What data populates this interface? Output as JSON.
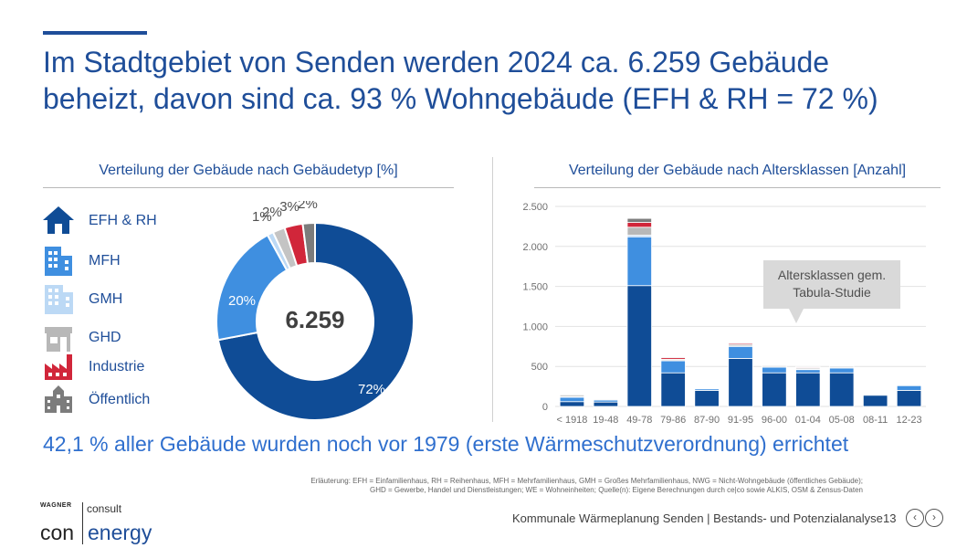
{
  "headline": {
    "line1": "Im Stadtgebiet von Senden werden 2024 ca. 6.259 Gebäude",
    "line2": "beheizt, davon sind ca. 93 % Wohngebäude (EFH & RH = 72 %)"
  },
  "left_panel": {
    "title": "Verteilung der Gebäude nach Gebäudetyp [%]"
  },
  "right_panel": {
    "title": "Verteilung der Gebäude nach Altersklassen [Anzahl]"
  },
  "legend": [
    {
      "label": "EFH & RH",
      "icon": "house-icon",
      "color": "#0f4c96"
    },
    {
      "label": "MFH",
      "icon": "apartment-building-icon",
      "color": "#3f8fe0"
    },
    {
      "label": "GMH",
      "icon": "large-apartment-icon",
      "color": "#bcd9f5"
    },
    {
      "label": "GHD",
      "icon": "shop-icon",
      "color": "#b8b8b8"
    },
    {
      "label": "Industrie",
      "icon": "factory-icon",
      "color": "#d1263a"
    },
    {
      "label": "Öffentlich",
      "icon": "public-building-icon",
      "color": "#7c7c7c"
    }
  ],
  "chart_data": [
    {
      "type": "pie",
      "title": "Verteilung der Gebäude nach Gebäudetyp [%]",
      "center_label": "6.259",
      "slices": [
        {
          "name": "EFH & RH",
          "value": 72,
          "label": "72%",
          "color": "#0f4c96"
        },
        {
          "name": "MFH",
          "value": 20,
          "label": "20%",
          "color": "#3f8fe0"
        },
        {
          "name": "GMH",
          "value": 1,
          "label": "1%",
          "color": "#bcd9f5"
        },
        {
          "name": "GHD",
          "value": 2,
          "label": "2%",
          "color": "#c4c4c4"
        },
        {
          "name": "Industrie",
          "value": 3,
          "label": "3%",
          "color": "#d1263a"
        },
        {
          "name": "Öffentlich",
          "value": 2,
          "label": "2%",
          "color": "#7c7c7c"
        }
      ]
    },
    {
      "type": "bar",
      "stacked": true,
      "title": "Verteilung der Gebäude nach Altersklassen [Anzahl]",
      "categories": [
        "< 1918",
        "19-48",
        "49-78",
        "79-86",
        "87-90",
        "91-95",
        "96-00",
        "01-04",
        "05-08",
        "08-11",
        "12-23"
      ],
      "ylim": [
        0,
        2500
      ],
      "yticks": [
        0,
        500,
        1000,
        1500,
        2000,
        2500
      ],
      "ytick_labels": [
        "0",
        "500",
        "1.000",
        "1.500",
        "2.000",
        "2.500"
      ],
      "grid": true,
      "series": [
        {
          "name": "EFH & RH",
          "color": "#0f4c96",
          "values": [
            60,
            55,
            1510,
            420,
            200,
            600,
            420,
            420,
            420,
            140,
            200
          ]
        },
        {
          "name": "MFH",
          "color": "#3f8fe0",
          "values": [
            55,
            25,
            610,
            150,
            20,
            150,
            70,
            40,
            60,
            10,
            60
          ]
        },
        {
          "name": "GMH",
          "color": "#bcd9f5",
          "values": [
            10,
            5,
            20,
            5,
            2,
            5,
            5,
            5,
            5,
            3,
            5
          ]
        },
        {
          "name": "GHD",
          "color": "#b8b8b8",
          "values": [
            20,
            10,
            100,
            15,
            5,
            20,
            15,
            15,
            15,
            5,
            10
          ]
        },
        {
          "name": "Industrie",
          "color": "#d1263a",
          "values": [
            5,
            2,
            60,
            20,
            3,
            15,
            5,
            10,
            3,
            2,
            3
          ]
        },
        {
          "name": "Öffentlich",
          "color": "#7c7c7c",
          "values": [
            5,
            3,
            50,
            10,
            3,
            10,
            5,
            10,
            5,
            2,
            5
          ]
        }
      ],
      "annotation": "Altersklassen gem. Tabula-Studie"
    }
  ],
  "callout": {
    "line1": "Altersklassen gem.",
    "line2": "Tabula-Studie"
  },
  "subline": "42,1 % aller Gebäude wurden noch vor 1979 (erste Wärmeschutzverordnung) errichtet",
  "footnote": {
    "line1": "Erläuterung: EFH = Einfamilienhaus, RH = Reihenhaus, MFH = Mehrfamilienhaus, GMH = Großes Mehrfamilienhaus, NWG = Nicht-Wohngebäude (öffentliches Gebäude);",
    "line2": "GHD = Gewerbe, Handel und Dienstleistungen; WE = Wohneinheiten; Quelle(n): Eigene Berechnungen durch ce|co sowie ALKIS, OSM & Zensus-Daten"
  },
  "logo": {
    "wagner": "WAGNER",
    "consult": "consult",
    "con": "con",
    "energy": "energy"
  },
  "footer": {
    "text": "Kommunale Wärmeplanung Senden | Bestands- und Potenzialanalyse",
    "page": "13"
  },
  "nav": {
    "prev": "‹",
    "next": "›"
  }
}
